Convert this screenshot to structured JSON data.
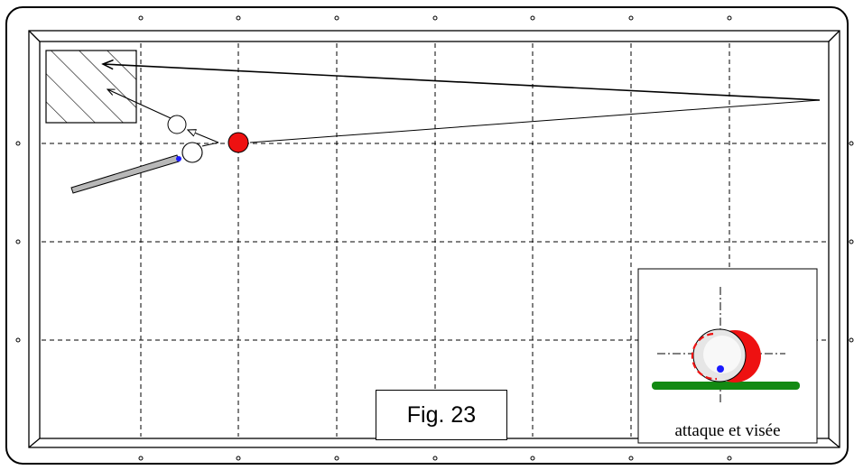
{
  "figure": {
    "label": "Fig. 23",
    "inset_caption": "attaque et visée"
  },
  "colors": {
    "cue_ball": "#ffffff",
    "object_ball": "#ee1111",
    "cue_tip": "#1a1aff",
    "cloth_line": "#138a13",
    "cue_stick": "#b8b8b8",
    "lines": "#000000"
  },
  "icons": {
    "target_zone": "hatched-rectangle-icon",
    "cue": "cue-stick-icon",
    "object_ball": "red-ball-icon",
    "cue_ball": "white-ball-icon"
  }
}
